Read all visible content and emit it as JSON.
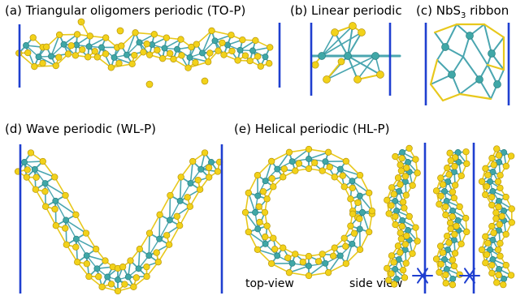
{
  "panels": {
    "a": {
      "prefix": "(a)",
      "title": "Triangular oligomers periodic (TO-P)"
    },
    "b": {
      "prefix": "(b)",
      "title": "Linear periodic"
    },
    "c": {
      "prefix": "(c)",
      "title_main": "NbS",
      "title_sub": "3",
      "title_tail": " ribbon"
    },
    "d": {
      "prefix": "(d)",
      "title": "Wave periodic (WL-P)"
    },
    "e": {
      "prefix": "(e)",
      "title": "Helical periodic (HL-P)"
    }
  },
  "view_labels": {
    "top": "top-view",
    "side": "side view"
  },
  "colors": {
    "sulfur": "#f2d21a",
    "sulfur_dark": "#b8960a",
    "niobium": "#3fa7a7",
    "bond_s": "#e8c81c",
    "bond_nb": "#4aa6b0",
    "cell_boundary": "#1f3fd0"
  }
}
